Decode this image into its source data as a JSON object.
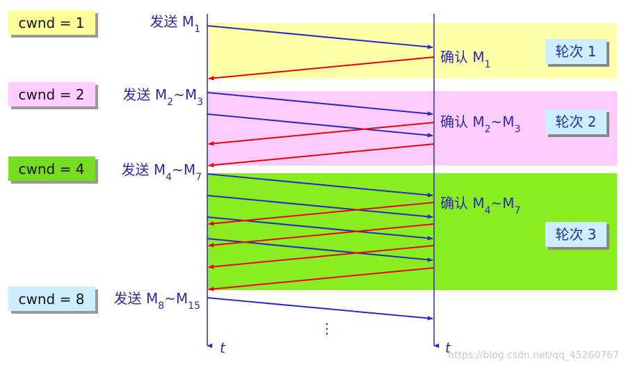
{
  "cwnd_boxes": [
    "cwnd = 1",
    "cwnd = 2",
    "cwnd = 4",
    "cwnd = 8"
  ],
  "send_labels": [
    [
      {
        "text": "发送 M"
      },
      {
        "text": "1",
        "sub": true
      }
    ],
    [
      {
        "text": "发送 M"
      },
      {
        "text": "2",
        "sub": true
      },
      {
        "text": "~M"
      },
      {
        "text": "3",
        "sub": true
      }
    ],
    [
      {
        "text": "发送 M"
      },
      {
        "text": "4",
        "sub": true
      },
      {
        "text": "~M"
      },
      {
        "text": "7",
        "sub": true
      }
    ],
    [
      {
        "text": "发送 M"
      },
      {
        "text": "8",
        "sub": true
      },
      {
        "text": "~M"
      },
      {
        "text": "15",
        "sub": true
      }
    ]
  ],
  "ack_labels": [
    [
      {
        "text": "确认 M"
      },
      {
        "text": "1",
        "sub": true
      }
    ],
    [
      {
        "text": "确认 M"
      },
      {
        "text": "2",
        "sub": true
      },
      {
        "text": "~M"
      },
      {
        "text": "3",
        "sub": true
      }
    ],
    [
      {
        "text": "确认 M"
      },
      {
        "text": "4",
        "sub": true
      },
      {
        "text": "~M"
      },
      {
        "text": "7",
        "sub": true
      }
    ]
  ],
  "rounds": [
    "轮次 1",
    "轮次 2",
    "轮次 3"
  ],
  "time_axis_labels": [
    "t",
    "t"
  ],
  "ellipsis": "⋮",
  "watermark": "https://blog.csdn.net/qq_45260767"
}
